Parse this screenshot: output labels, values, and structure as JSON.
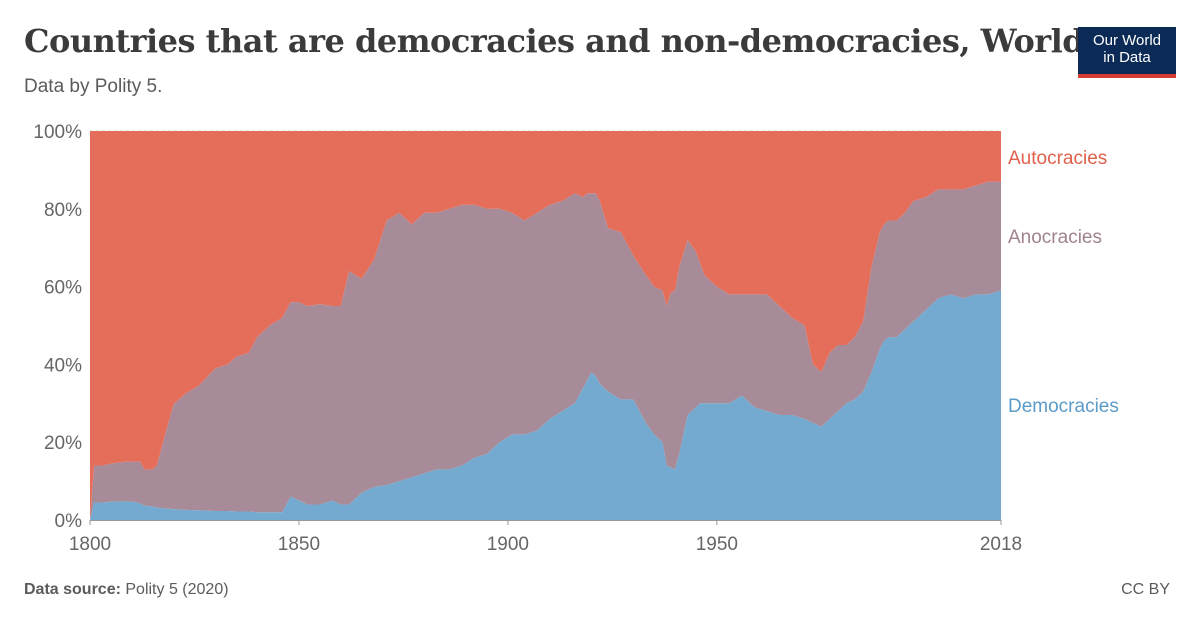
{
  "header": {
    "title": "Countries that are democracies and non-democracies, World",
    "subtitle": "Data by Polity 5.",
    "logo_line1": "Our World",
    "logo_line2": "in Data"
  },
  "footer": {
    "source_label": "Data source:",
    "source_text": "Polity 5 (2020)",
    "license": "CC BY"
  },
  "colors": {
    "autocracies": "#e56e5a",
    "anocracies": "#a88b99",
    "democracies": "#74aacf",
    "autocracies_label": "#e0604c",
    "anocracies_label": "#a0828f",
    "democracies_label": "#5b9bc8"
  },
  "chart_data": {
    "type": "area",
    "stacked": true,
    "x_range": [
      1800,
      2018
    ],
    "y_range": [
      0,
      100
    ],
    "y_unit": "%",
    "y_ticks": [
      0,
      20,
      40,
      60,
      80,
      100
    ],
    "y_tick_labels": [
      "0%",
      "20%",
      "40%",
      "60%",
      "80%",
      "100%"
    ],
    "x_ticks": [
      1800,
      1850,
      1900,
      1950,
      2018
    ],
    "x_tick_labels": [
      "1800",
      "1850",
      "1900",
      "1950",
      "2018"
    ],
    "grid": true,
    "legend": "right",
    "x": [
      1800,
      1801,
      1803,
      1805,
      1807,
      1809,
      1811,
      1812,
      1813,
      1815,
      1816,
      1818,
      1820,
      1823,
      1826,
      1830,
      1833,
      1835,
      1838,
      1840,
      1843,
      1846,
      1848,
      1850,
      1852,
      1855,
      1858,
      1860,
      1862,
      1865,
      1868,
      1871,
      1874,
      1877,
      1880,
      1883,
      1886,
      1889,
      1892,
      1895,
      1898,
      1901,
      1904,
      1907,
      1910,
      1913,
      1916,
      1918,
      1919,
      1920,
      1921,
      1922,
      1924,
      1927,
      1930,
      1933,
      1935,
      1937,
      1938,
      1939,
      1940,
      1941,
      1943,
      1945,
      1946,
      1947,
      1950,
      1953,
      1956,
      1959,
      1962,
      1965,
      1968,
      1971,
      1973,
      1975,
      1977,
      1979,
      1981,
      1983,
      1985,
      1987,
      1989,
      1990,
      1991,
      1993,
      1995,
      1997,
      2000,
      2003,
      2006,
      2009,
      2012,
      2015,
      2018
    ],
    "series": [
      {
        "name": "Democracies",
        "values": [
          0,
          4.5,
          4.5,
          4.7,
          4.8,
          4.8,
          4.6,
          4.2,
          3.7,
          3.5,
          3.2,
          3.0,
          2.8,
          2.6,
          2.5,
          2.3,
          2.3,
          2.2,
          2.2,
          2.0,
          2.0,
          2.0,
          6.0,
          5.0,
          4.0,
          4.0,
          5.0,
          4.0,
          4.0,
          7.0,
          8.5,
          9.0,
          10.0,
          11.0,
          12.0,
          13.0,
          13.0,
          14.0,
          16.0,
          17.0,
          20.0,
          22.0,
          22.0,
          23.0,
          26.0,
          28.0,
          30.0,
          34.0,
          36.0,
          38.0,
          37.0,
          35.0,
          33.0,
          31.0,
          31.0,
          25.0,
          22.0,
          20.0,
          14.0,
          13.5,
          13.0,
          17.0,
          27.0,
          29.0,
          30.0,
          30.0,
          30.0,
          30.0,
          32.0,
          29.0,
          28.0,
          27.0,
          27.0,
          26.0,
          25.0,
          24.0,
          26.0,
          28.0,
          30.0,
          31.0,
          33.0,
          38.0,
          44.0,
          46.0,
          47.0,
          47.0,
          49.0,
          51.0,
          54.0,
          57.0,
          58.0,
          57.0,
          58.0,
          58.0,
          59.0
        ]
      },
      {
        "name": "Anocracies",
        "values": [
          0,
          9.5,
          9.5,
          9.8,
          10.0,
          10.2,
          10.4,
          10.8,
          9.3,
          9.5,
          10.8,
          19.0,
          27.0,
          30.0,
          32.0,
          36.7,
          37.7,
          39.8,
          40.8,
          45.0,
          48.0,
          50.0,
          50.0,
          51.0,
          51.0,
          51.5,
          50.0,
          51.0,
          60.0,
          55.0,
          58.5,
          68.0,
          69.0,
          65.0,
          67.0,
          66.0,
          67.0,
          67.0,
          65.0,
          63.0,
          60.0,
          57.0,
          55.0,
          56.0,
          55.0,
          54.0,
          54.0,
          49.0,
          48.0,
          46.0,
          47.0,
          47.0,
          42.0,
          43.0,
          37.0,
          38.0,
          38.0,
          39.0,
          41.0,
          45.0,
          46.0,
          48.0,
          45.0,
          40.0,
          36.0,
          33.0,
          30.0,
          28.0,
          26.0,
          29.0,
          30.0,
          28.0,
          25.0,
          24.0,
          15.0,
          14.0,
          17.0,
          17.0,
          15.0,
          16.0,
          18.0,
          27.0,
          30.0,
          30.0,
          30.0,
          30.0,
          30.0,
          31.0,
          29.0,
          28.0,
          27.0,
          28.0,
          28.0,
          29.0,
          28.0
        ]
      },
      {
        "name": "Autocracies",
        "values": [
          100,
          86.0,
          86.0,
          85.5,
          85.2,
          85.0,
          85.0,
          85.0,
          87.0,
          87.0,
          86.0,
          78.0,
          70.2,
          67.4,
          65.5,
          61.0,
          60.0,
          58.0,
          57.0,
          53.0,
          50.0,
          48.0,
          44.0,
          44.0,
          45.0,
          44.5,
          45.0,
          45.0,
          36.0,
          38.0,
          33.0,
          23.0,
          21.0,
          24.0,
          21.0,
          21.0,
          20.0,
          19.0,
          19.0,
          20.0,
          20.0,
          21.0,
          23.0,
          21.0,
          19.0,
          18.0,
          16.0,
          17.0,
          16.0,
          16.0,
          16.0,
          18.0,
          25.0,
          26.0,
          32.0,
          37.0,
          40.0,
          41.0,
          45.0,
          41.5,
          41.0,
          35.0,
          28.0,
          31.0,
          34.0,
          37.0,
          40.0,
          42.0,
          42.0,
          42.0,
          42.0,
          45.0,
          48.0,
          50.0,
          60.0,
          62.0,
          57.0,
          55.0,
          55.0,
          53.0,
          49.0,
          35.0,
          26.0,
          24.0,
          23.0,
          23.0,
          21.0,
          18.0,
          17.0,
          15.0,
          15.0,
          15.0,
          14.0,
          13.0,
          13.0
        ]
      }
    ]
  }
}
